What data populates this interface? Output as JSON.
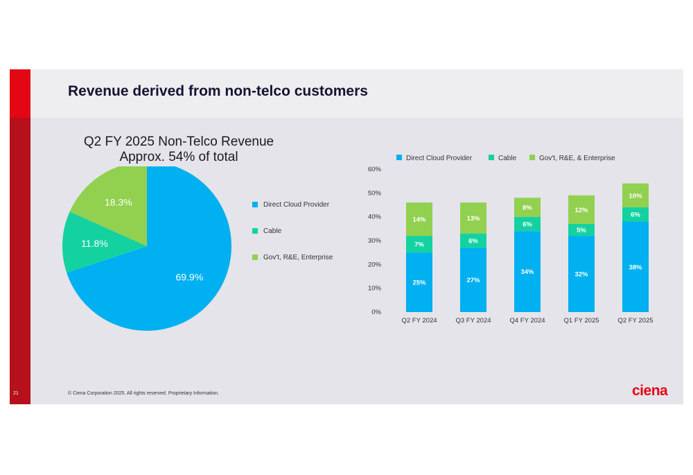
{
  "slide": {
    "title": "Revenue derived from non-telco customers",
    "page_number": "21",
    "footer": "© Ciena Corporation 2025. All rights reserved. Proprietary Information.",
    "logo_text": "ciena"
  },
  "colors": {
    "direct_cloud": "#00b0f0",
    "cable": "#14d2a0",
    "gov_enterprise": "#92d050",
    "brand_red": "#e30613"
  },
  "chart_data": [
    {
      "type": "pie",
      "title": "Q2 FY 2025 Non-Telco Revenue",
      "subtitle": "Approx. 54% of total",
      "legend_position": "right",
      "slices": [
        {
          "name": "Direct Cloud Provider",
          "value": 69.9,
          "label": "69.9%"
        },
        {
          "name": "Cable",
          "value": 11.8,
          "label": "11.8%"
        },
        {
          "name": "Gov't, R&E, Enterprise",
          "value": 18.3,
          "label": "18.3%"
        }
      ]
    },
    {
      "type": "bar",
      "stacked": true,
      "legend_position": "top",
      "categories": [
        "Q2 FY 2024",
        "Q3 FY 2024",
        "Q4 FY 2024",
        "Q1 FY 2025",
        "Q2 FY 2025"
      ],
      "ylim": [
        0,
        60
      ],
      "yticks": [
        "0%",
        "10%",
        "20%",
        "30%",
        "40%",
        "50%",
        "60%"
      ],
      "series": [
        {
          "name": "Direct Cloud Provider",
          "values": [
            25,
            27,
            34,
            32,
            38
          ],
          "labels": [
            "25%",
            "27%",
            "34%",
            "32%",
            "38%"
          ]
        },
        {
          "name": "Cable",
          "values": [
            7,
            6,
            6,
            5,
            6
          ],
          "labels": [
            "7%",
            "6%",
            "6%",
            "5%",
            "6%"
          ]
        },
        {
          "name": "Gov't, R&E, & Enterprise",
          "values": [
            14,
            13,
            8,
            12,
            10
          ],
          "labels": [
            "14%",
            "13%",
            "8%",
            "12%",
            "10%"
          ]
        }
      ]
    }
  ]
}
